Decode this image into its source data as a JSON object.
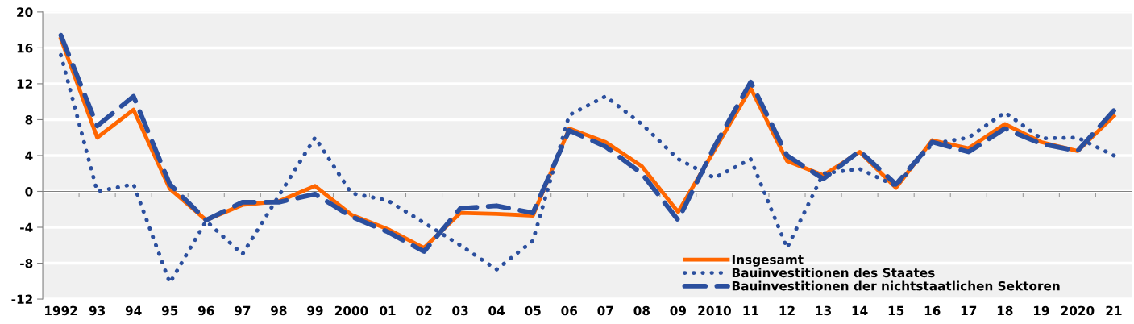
{
  "chart_data": {
    "type": "line",
    "categories": [
      "1992",
      "93",
      "94",
      "95",
      "96",
      "97",
      "98",
      "99",
      "2000",
      "01",
      "02",
      "03",
      "04",
      "05",
      "06",
      "07",
      "08",
      "09",
      "2010",
      "11",
      "12",
      "13",
      "14",
      "15",
      "16",
      "17",
      "18",
      "19",
      "2020",
      "21"
    ],
    "series": [
      {
        "name": "Insgesamt",
        "color": "#ff6600",
        "line_style": "solid",
        "values": [
          17.0,
          6.0,
          9.1,
          0.3,
          -3.2,
          -1.5,
          -1.1,
          0.6,
          -2.6,
          -4.2,
          -6.3,
          -2.4,
          -2.5,
          -2.7,
          7.0,
          5.5,
          2.8,
          -2.3,
          4.6,
          11.5,
          3.4,
          1.8,
          4.4,
          0.4,
          5.7,
          4.8,
          7.5,
          5.5,
          4.5,
          8.4
        ]
      },
      {
        "name": "Bauinvestitionen des Staates",
        "color": "#2b4f9e",
        "line_style": "dotted",
        "values": [
          15.2,
          0.0,
          0.8,
          -10.2,
          -3.3,
          -7.0,
          -0.5,
          6.0,
          -0.2,
          -1.0,
          -3.5,
          -6.0,
          -8.7,
          -5.5,
          8.5,
          10.6,
          7.5,
          3.6,
          1.5,
          3.6,
          -6.3,
          2.0,
          2.5,
          0.6,
          5.3,
          6.0,
          8.8,
          5.9,
          6.0,
          4.0
        ]
      },
      {
        "name": "Bauinvestitionen der nichtstaatlichen Sektoren",
        "color": "#2b4f9e",
        "line_style": "dashed",
        "values": [
          17.4,
          7.3,
          10.6,
          0.8,
          -3.2,
          -1.2,
          -1.2,
          -0.3,
          -2.8,
          -4.5,
          -6.7,
          -1.9,
          -1.6,
          -2.4,
          6.8,
          5.0,
          2.0,
          -3.2,
          5.0,
          12.2,
          4.0,
          1.4,
          4.5,
          0.8,
          5.5,
          4.4,
          7.0,
          5.3,
          4.5,
          9.0
        ]
      }
    ],
    "ylim": [
      -12,
      20
    ],
    "yticks": [
      -12,
      -8,
      -4,
      0,
      4,
      8,
      12,
      16,
      20
    ],
    "grid": "y",
    "legend": "bottom right",
    "marker": "none"
  }
}
